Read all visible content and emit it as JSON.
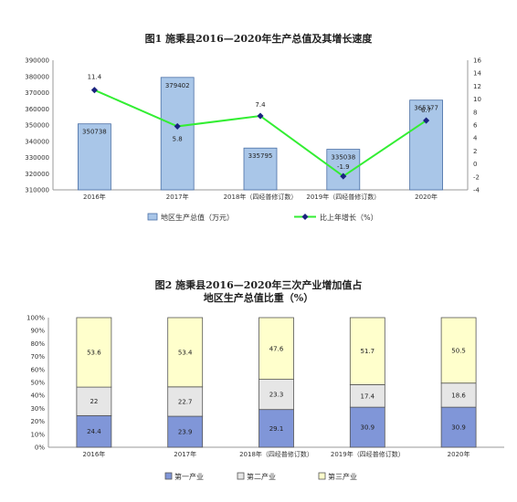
{
  "chart_data": [
    {
      "type": "bar+line",
      "title": "图1  施秉县2016—2020年生产总值及其增长速度",
      "categories": [
        "2016年",
        "2017年",
        "2018年（四经普修订数）",
        "2019年（四经普修订数）",
        "2020年"
      ],
      "series": [
        {
          "name": "地区生产总值（万元）",
          "type": "bar",
          "axis": "left",
          "values": [
            350738,
            379402,
            335795,
            335038,
            365377
          ],
          "labels": [
            "350738",
            "379402",
            "335795",
            "335038",
            "365377"
          ]
        },
        {
          "name": "比上年增长（%）",
          "type": "line",
          "axis": "right",
          "values": [
            11.4,
            5.8,
            7.4,
            -1.9,
            6.7
          ],
          "labels": [
            "11.4",
            "5.8",
            "7.4",
            "-1.9",
            "6.7"
          ]
        }
      ],
      "ylim_left": [
        310000,
        390000
      ],
      "yticks_left": [
        "390000",
        "380000",
        "370000",
        "360000",
        "350000",
        "340000",
        "330000",
        "320000",
        "310000"
      ],
      "ylim_right": [
        -4,
        16
      ],
      "yticks_right": [
        "16",
        "14",
        "12",
        "10",
        "8",
        "6",
        "4",
        "2",
        "0",
        "-2",
        "-4"
      ],
      "legend_position": "bottom",
      "colors": {
        "bar_fill": "#a9c6e8",
        "bar_stroke": "#4a6fa5",
        "line": "#33ee33",
        "marker": "#1a237e"
      }
    },
    {
      "type": "stacked-bar",
      "title_line1": "图2  施秉县2016—2020年三次产业增加值占",
      "title_line2": "地区生产总值比重（%）",
      "categories": [
        "2016年",
        "2017年",
        "2018年（四经普修订数）",
        "2019年（四经普修订数）",
        "2020年"
      ],
      "series": [
        {
          "name": "第一产业",
          "values": [
            24.4,
            23.9,
            29.1,
            30.9,
            30.9
          ],
          "labels": [
            "24.4",
            "23.9",
            "29.1",
            "30.9",
            "30.9"
          ]
        },
        {
          "name": "第二产业",
          "values": [
            22,
            22.7,
            23.3,
            17.4,
            18.6
          ],
          "labels": [
            "22",
            "22.7",
            "23.3",
            "17.4",
            "18.6"
          ]
        },
        {
          "name": "第三产业",
          "values": [
            53.6,
            53.4,
            47.6,
            51.7,
            50.5
          ],
          "labels": [
            "53.6",
            "53.4",
            "47.6",
            "51.7",
            "50.5"
          ]
        }
      ],
      "ylim": [
        0,
        100
      ],
      "yticks": [
        "100%",
        "90%",
        "80%",
        "70%",
        "60%",
        "50%",
        "40%",
        "30%",
        "20%",
        "10%",
        "0%"
      ],
      "legend_position": "bottom",
      "colors": {
        "primary": "#8096d8",
        "secondary": "#e6e6e6",
        "tertiary": "#ffffcc",
        "stroke": "#555555"
      }
    }
  ]
}
